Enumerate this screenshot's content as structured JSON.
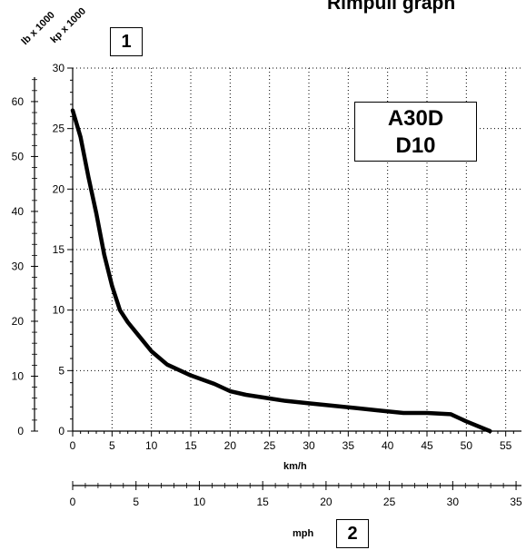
{
  "title": "Rimpull graph",
  "callouts": {
    "one": "1",
    "two": "2"
  },
  "model_box": {
    "line1": "A30D",
    "line2": "D10"
  },
  "chart_data": {
    "type": "line",
    "title": "Rimpull graph",
    "xlabel": "km/h",
    "x2label": "mph",
    "y_left_outer_label": "lb x 1000",
    "y_left_inner_label": "kp x 1000",
    "xlim": [
      0,
      57
    ],
    "ylim_kp": [
      0,
      30
    ],
    "ylim_lb": [
      0,
      66.1
    ],
    "x_ticks_kmh": [
      "0",
      "5",
      "10",
      "15",
      "20",
      "25",
      "30",
      "35",
      "40",
      "45",
      "50",
      "55"
    ],
    "x_ticks_mph": [
      "0",
      "5",
      "10",
      "15",
      "20",
      "25",
      "30",
      "35"
    ],
    "y_ticks_kp": [
      "0",
      "5",
      "10",
      "15",
      "20",
      "25",
      "30"
    ],
    "y_ticks_lb": [
      "0",
      "10",
      "20",
      "30",
      "40",
      "50",
      "60"
    ],
    "grid": true,
    "series": [
      {
        "x": [
          0,
          1,
          2,
          3,
          4,
          5,
          6,
          7,
          8,
          9,
          10,
          12,
          15,
          18,
          20,
          22,
          25,
          27,
          30,
          33,
          36,
          39,
          42,
          45,
          48,
          50,
          53
        ],
        "y": [
          26.5,
          24.3,
          21.0,
          18.0,
          14.6,
          12.0,
          10.0,
          9.0,
          8.2,
          7.4,
          6.6,
          5.5,
          4.6,
          3.9,
          3.3,
          3.0,
          2.7,
          2.5,
          2.3,
          2.1,
          1.9,
          1.7,
          1.5,
          1.5,
          1.4,
          0.8,
          0.0
        ]
      }
    ]
  }
}
